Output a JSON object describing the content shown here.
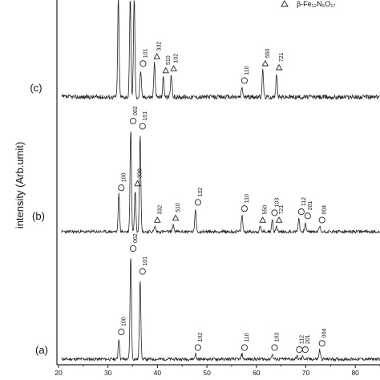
{
  "chart_data": {
    "type": "line",
    "ylabel": "intensity (Arb.umit)",
    "x_ticks": [
      "20",
      "30",
      "40",
      "50",
      "60",
      "70",
      "80"
    ],
    "xlim": [
      20,
      85
    ],
    "legend": {
      "entries": [
        {
          "symbol": "triangle",
          "text": "β-Fe₁₂N₅O₁₇"
        }
      ]
    },
    "series": [
      {
        "name": "(a)",
        "peaks": [
          {
            "x": 32.2,
            "h": 0.2,
            "marker": "circle",
            "label": "100"
          },
          {
            "x": 34.6,
            "h": 1.0,
            "marker": "circle",
            "label": "002"
          },
          {
            "x": 36.5,
            "h": 0.78,
            "marker": "circle",
            "label": "101"
          },
          {
            "x": 47.7,
            "h": 0.05,
            "marker": "circle",
            "label": "102"
          },
          {
            "x": 57.1,
            "h": 0.05,
            "marker": "circle",
            "label": "110"
          },
          {
            "x": 63.2,
            "h": 0.05,
            "marker": "circle",
            "label": "103"
          },
          {
            "x": 68.2,
            "h": 0.03,
            "marker": "circle",
            "label": "112"
          },
          {
            "x": 69.4,
            "h": 0.03,
            "marker": "circle",
            "label": "201"
          },
          {
            "x": 72.8,
            "h": 0.09,
            "marker": "circle",
            "label": "004"
          }
        ]
      },
      {
        "name": "(b)",
        "peaks": [
          {
            "x": 32.2,
            "h": 0.36,
            "marker": "circle",
            "label": "100"
          },
          {
            "x": 34.6,
            "h": 1.0,
            "marker": "circle",
            "label": "002"
          },
          {
            "x": 35.5,
            "h": 0.4,
            "marker": "triangle",
            "label": "330"
          },
          {
            "x": 36.5,
            "h": 0.95,
            "marker": "circle",
            "label": "101"
          },
          {
            "x": 39.5,
            "h": 0.05,
            "marker": "triangle",
            "label": "332"
          },
          {
            "x": 43.2,
            "h": 0.07,
            "marker": "triangle",
            "label": "510"
          },
          {
            "x": 47.7,
            "h": 0.22,
            "marker": "circle",
            "label": "102"
          },
          {
            "x": 57.1,
            "h": 0.16,
            "marker": "circle",
            "label": "110"
          },
          {
            "x": 60.8,
            "h": 0.05,
            "marker": "triangle",
            "label": "550"
          },
          {
            "x": 63.2,
            "h": 0.12,
            "marker": "circle",
            "label": "103"
          },
          {
            "x": 64.1,
            "h": 0.05,
            "marker": "triangle",
            "label": "721"
          },
          {
            "x": 68.6,
            "h": 0.13,
            "marker": "circle",
            "label": "112"
          },
          {
            "x": 69.9,
            "h": 0.09,
            "marker": "circle",
            "label": "201"
          },
          {
            "x": 72.8,
            "h": 0.05,
            "marker": "circle",
            "label": "004"
          }
        ]
      },
      {
        "name": "(c)",
        "peaks": [
          {
            "x": 32.1,
            "h": 1.0,
            "marker": "none",
            "label": ""
          },
          {
            "x": 34.5,
            "h": 1.0,
            "marker": "none",
            "label": ""
          },
          {
            "x": 35.3,
            "h": 1.0,
            "marker": "none",
            "label": ""
          },
          {
            "x": 36.6,
            "h": 0.27,
            "marker": "circle",
            "label": "101"
          },
          {
            "x": 39.4,
            "h": 0.34,
            "marker": "triangle",
            "label": "332"
          },
          {
            "x": 41.2,
            "h": 0.2,
            "marker": "triangle",
            "label": "510"
          },
          {
            "x": 42.8,
            "h": 0.22,
            "marker": "triangle",
            "label": "102"
          },
          {
            "x": 57.1,
            "h": 0.1,
            "marker": "circle",
            "label": "110"
          },
          {
            "x": 61.3,
            "h": 0.27,
            "marker": "triangle",
            "label": "550"
          },
          {
            "x": 64.1,
            "h": 0.23,
            "marker": "triangle",
            "label": "721"
          }
        ]
      }
    ]
  }
}
